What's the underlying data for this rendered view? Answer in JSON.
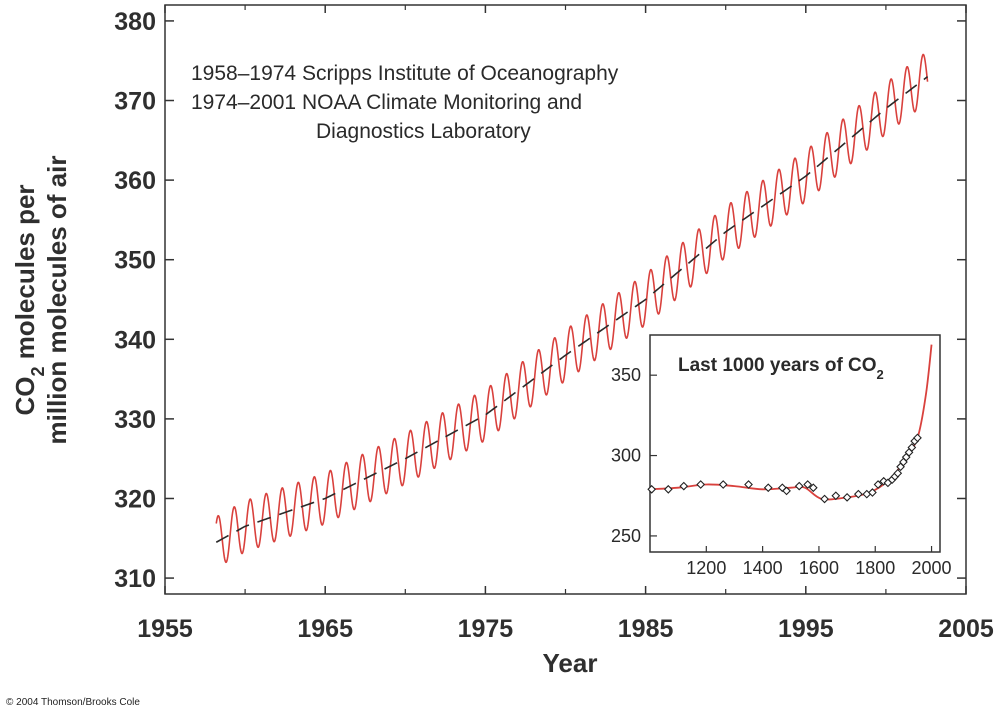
{
  "chart_data": [
    {
      "type": "line",
      "xlabel": "Year",
      "ylabel_line1": "CO",
      "ylabel_sub": "2",
      "ylabel_line1_rest": " molecules per",
      "ylabel_line2": "million molecules of air",
      "xlim": [
        1955,
        2005
      ],
      "ylim": [
        308,
        382
      ],
      "x_ticks": [
        1955,
        1965,
        1975,
        1985,
        1995,
        2005
      ],
      "y_ticks": [
        310,
        320,
        330,
        340,
        350,
        360,
        370,
        380
      ],
      "annotations": [
        "1958–1974 Scripps Institute of Oceanography",
        "1974–2001 NOAA Climate Monitoring and",
        "Diagnostics Laboratory"
      ],
      "series": [
        {
          "style": "seasonal-oscillating-line",
          "color": "#d9413d",
          "x_start": 1958.2,
          "x_end": 2002.6,
          "seasonal_amplitude": 3.2,
          "trend_points": [
            {
              "x": 1958.2,
              "y": 314.5
            },
            {
              "x": 1960,
              "y": 316.5
            },
            {
              "x": 1965,
              "y": 320.0
            },
            {
              "x": 1970,
              "y": 325.0
            },
            {
              "x": 1975,
              "y": 330.5
            },
            {
              "x": 1980,
              "y": 338.0
            },
            {
              "x": 1985,
              "y": 345.0
            },
            {
              "x": 1990,
              "y": 353.5
            },
            {
              "x": 1995,
              "y": 360.5
            },
            {
              "x": 2000,
              "y": 369.0
            },
            {
              "x": 2002.6,
              "y": 373.0
            }
          ]
        },
        {
          "style": "dashed-trend",
          "color": "#2a2a2a",
          "trend_of": 0
        }
      ]
    },
    {
      "type": "line",
      "title_text": "Last 1000 years of CO",
      "title_sub": "2",
      "xlim": [
        1000,
        2030
      ],
      "ylim": [
        240,
        375
      ],
      "x_ticks": [
        1200,
        1400,
        1600,
        1800,
        2000
      ],
      "y_ticks": [
        250,
        300,
        350
      ],
      "curve": [
        {
          "x": 1000,
          "y": 279
        },
        {
          "x": 1100,
          "y": 280
        },
        {
          "x": 1200,
          "y": 282
        },
        {
          "x": 1300,
          "y": 281
        },
        {
          "x": 1400,
          "y": 279
        },
        {
          "x": 1500,
          "y": 280
        },
        {
          "x": 1550,
          "y": 280
        },
        {
          "x": 1610,
          "y": 273
        },
        {
          "x": 1700,
          "y": 274
        },
        {
          "x": 1780,
          "y": 277
        },
        {
          "x": 1850,
          "y": 285
        },
        {
          "x": 1900,
          "y": 296
        },
        {
          "x": 1950,
          "y": 311
        },
        {
          "x": 1980,
          "y": 338
        },
        {
          "x": 2000,
          "y": 369
        }
      ],
      "points": [
        {
          "x": 1006,
          "y": 279
        },
        {
          "x": 1065,
          "y": 279
        },
        {
          "x": 1120,
          "y": 281
        },
        {
          "x": 1180,
          "y": 282
        },
        {
          "x": 1260,
          "y": 282
        },
        {
          "x": 1350,
          "y": 282
        },
        {
          "x": 1420,
          "y": 280
        },
        {
          "x": 1470,
          "y": 280
        },
        {
          "x": 1485,
          "y": 278
        },
        {
          "x": 1530,
          "y": 281
        },
        {
          "x": 1560,
          "y": 282
        },
        {
          "x": 1580,
          "y": 280
        },
        {
          "x": 1620,
          "y": 273
        },
        {
          "x": 1660,
          "y": 275
        },
        {
          "x": 1700,
          "y": 274
        },
        {
          "x": 1740,
          "y": 276
        },
        {
          "x": 1770,
          "y": 276
        },
        {
          "x": 1790,
          "y": 277
        },
        {
          "x": 1810,
          "y": 282
        },
        {
          "x": 1830,
          "y": 284
        },
        {
          "x": 1845,
          "y": 283
        },
        {
          "x": 1860,
          "y": 285
        },
        {
          "x": 1870,
          "y": 287
        },
        {
          "x": 1880,
          "y": 289
        },
        {
          "x": 1890,
          "y": 293
        },
        {
          "x": 1900,
          "y": 296
        },
        {
          "x": 1910,
          "y": 299
        },
        {
          "x": 1920,
          "y": 302
        },
        {
          "x": 1930,
          "y": 305
        },
        {
          "x": 1940,
          "y": 309
        },
        {
          "x": 1950,
          "y": 311
        }
      ],
      "curve_color": "#d9413d",
      "marker": "open-diamond"
    }
  ],
  "copyright": "© 2004 Thomson/Brooks Cole"
}
